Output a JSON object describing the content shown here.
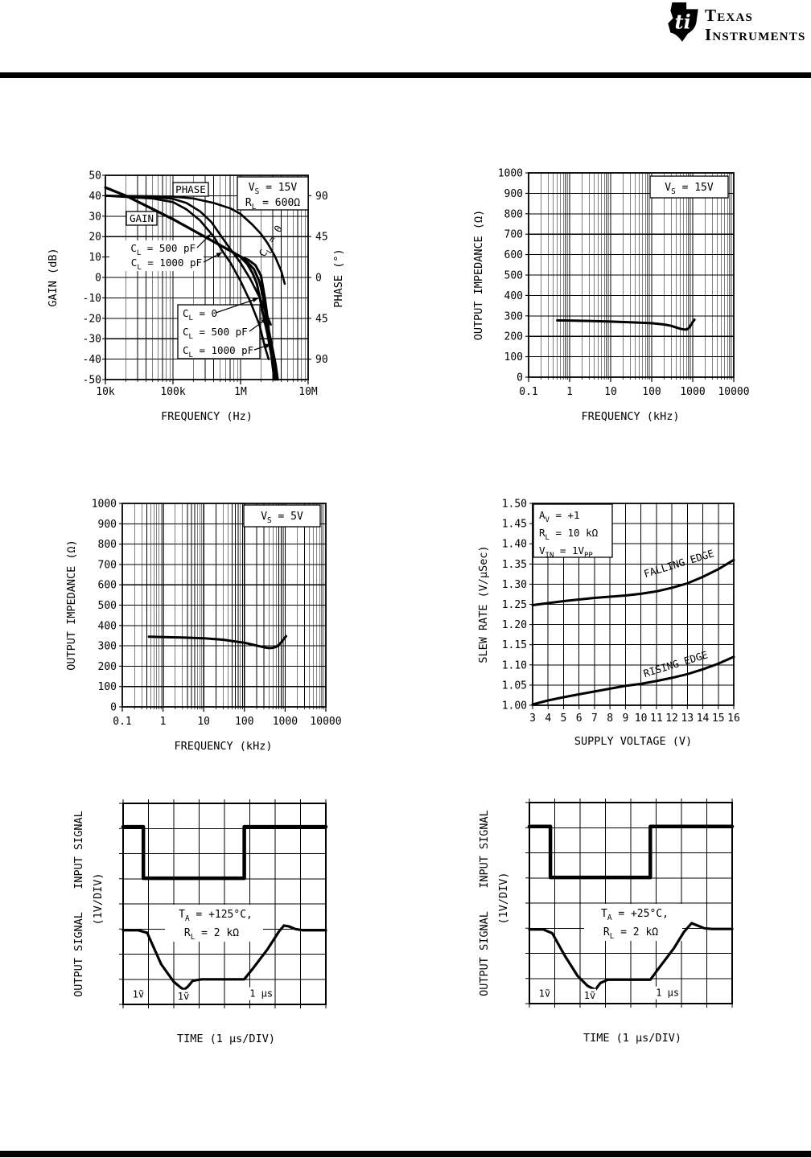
{
  "header": {
    "logo_mark_text": "ti",
    "brand_line1": "Texas",
    "brand_line2": "Instruments"
  },
  "chart_data": [
    {
      "id": "gain-phase-vs-frequency",
      "type": "line",
      "xscale": "log",
      "xlabel": "FREQUENCY (Hz)",
      "ylabel": "GAIN (dB)",
      "y2label": "PHASE (°)",
      "xlim": [
        10000,
        10000000
      ],
      "ylim": [
        -50,
        50
      ],
      "yticks": [
        "50",
        "40",
        "30",
        "20",
        "10",
        "0",
        "-10",
        "-20",
        "-30",
        "-40",
        "-50"
      ],
      "xticks": [
        {
          "exp": 4,
          "label": "10k"
        },
        {
          "exp": 5,
          "label": "100k"
        },
        {
          "exp": 6,
          "label": "1M"
        },
        {
          "exp": 7,
          "label": "10M"
        }
      ],
      "y2ticks": [
        {
          "at_db": 40,
          "label": "90"
        },
        {
          "at_db": 20,
          "label": "45"
        },
        {
          "at_db": 0,
          "label": "0"
        },
        {
          "at_db": -20,
          "label": "45"
        },
        {
          "at_db": -40,
          "label": "90"
        }
      ],
      "conditions": [
        "V~S~ = 15V",
        "R~L~ = 600Ω"
      ],
      "curve_labels": {
        "phase": "PHASE",
        "gain": "GAIN",
        "upper": [
          "C~L~ = 500 pF",
          "C~L~ = 1000 pF"
        ],
        "diagonal": "C~L~ = 0",
        "lower": [
          "C~L~ = 0",
          "C~L~ = 500 pF",
          "C~L~ = 1000 pF"
        ]
      },
      "series": [
        {
          "name": "GAIN CL = 0",
          "axis": "y1",
          "lw": 3,
          "points": [
            [
              10000,
              44
            ],
            [
              20000,
              40
            ],
            [
              50000,
              33.5
            ],
            [
              100000,
              28.5
            ],
            [
              200000,
              23
            ],
            [
              400000,
              17.5
            ],
            [
              710000,
              13
            ],
            [
              1000000,
              10
            ],
            [
              1260000,
              6.5
            ],
            [
              1510000,
              2
            ],
            [
              1740000,
              -3
            ],
            [
              1950000,
              -11
            ],
            [
              2190000,
              -19
            ],
            [
              2510000,
              -28
            ],
            [
              2820000,
              -37
            ],
            [
              3090000,
              -44
            ],
            [
              3310000,
              -50
            ]
          ]
        },
        {
          "name": "GAIN CL = 500 pF",
          "axis": "y1",
          "lw": 3,
          "points": [
            [
              10000,
              44
            ],
            [
              20000,
              40
            ],
            [
              50000,
              33.5
            ],
            [
              100000,
              28.5
            ],
            [
              200000,
              23
            ],
            [
              400000,
              17.5
            ],
            [
              710000,
              13
            ],
            [
              1000000,
              10
            ],
            [
              1260000,
              7.5
            ],
            [
              1580000,
              4
            ],
            [
              1900000,
              -2
            ],
            [
              2140000,
              -9
            ],
            [
              2400000,
              -20
            ],
            [
              2690000,
              -28
            ],
            [
              3020000,
              -36
            ],
            [
              3310000,
              -43
            ],
            [
              3550000,
              -50
            ]
          ]
        },
        {
          "name": "GAIN CL = 1000 pF",
          "axis": "y1",
          "lw": 3,
          "points": [
            [
              10000,
              44
            ],
            [
              20000,
              40
            ],
            [
              50000,
              33.5
            ],
            [
              100000,
              28.5
            ],
            [
              200000,
              23
            ],
            [
              400000,
              17.5
            ],
            [
              710000,
              13
            ],
            [
              1000000,
              10.2
            ],
            [
              1320000,
              8.5
            ],
            [
              1660000,
              6
            ],
            [
              2000000,
              1
            ],
            [
              2290000,
              -10
            ],
            [
              2510000,
              -20
            ],
            [
              2750000,
              -33
            ],
            [
              2950000,
              -42
            ],
            [
              3160000,
              -50
            ]
          ]
        },
        {
          "name": "PHASE CL = 0",
          "axis": "y2",
          "lw": 2.6,
          "points": [
            [
              10000,
              90
            ],
            [
              50000,
              89.5
            ],
            [
              100000,
              89
            ],
            [
              200000,
              87
            ],
            [
              400000,
              82
            ],
            [
              710000,
              76
            ],
            [
              1000000,
              70
            ],
            [
              1500000,
              58
            ],
            [
              2000000,
              48
            ],
            [
              2500000,
              38
            ],
            [
              3200000,
              24
            ],
            [
              4000000,
              7
            ],
            [
              4500000,
              -7
            ]
          ]
        },
        {
          "name": "PHASE CL = 500 pF",
          "axis": "y2",
          "lw": 2.6,
          "points": [
            [
              10000,
              90
            ],
            [
              50000,
              88.6
            ],
            [
              100000,
              86.6
            ],
            [
              158000,
              82
            ],
            [
              250000,
              73
            ],
            [
              370000,
              61
            ],
            [
              500000,
              47
            ],
            [
              710000,
              31
            ],
            [
              1000000,
              16
            ],
            [
              1400000,
              -2
            ],
            [
              2000000,
              -25
            ],
            [
              2500000,
              -43
            ],
            [
              2800000,
              -52
            ]
          ]
        },
        {
          "name": "PHASE CL = 1000 pF",
          "axis": "y2",
          "lw": 2.6,
          "points": [
            [
              10000,
              90
            ],
            [
              50000,
              87
            ],
            [
              100000,
              83
            ],
            [
              158000,
              75
            ],
            [
              250000,
              63
            ],
            [
              400000,
              45
            ],
            [
              550000,
              28
            ],
            [
              710000,
              16
            ],
            [
              1000000,
              -4
            ],
            [
              1400000,
              -27
            ],
            [
              1900000,
              -52
            ],
            [
              2300000,
              -77
            ],
            [
              2600000,
              -90
            ]
          ]
        }
      ]
    },
    {
      "id": "output-impedance-vs-frequency-15v",
      "type": "line",
      "xscale": "log",
      "xlabel": "FREQUENCY (kHz)",
      "ylabel": "OUTPUT IMPEDANCE (Ω)",
      "xlim": [
        0.1,
        10000
      ],
      "ylim": [
        0,
        1000
      ],
      "yticks": [
        "1000",
        "900",
        "800",
        "700",
        "600",
        "500",
        "400",
        "300",
        "200",
        "100",
        "0"
      ],
      "xticks": [
        {
          "exp": -1,
          "label": "0.1"
        },
        {
          "exp": 0,
          "label": "1"
        },
        {
          "exp": 1,
          "label": "10"
        },
        {
          "exp": 2,
          "label": "100"
        },
        {
          "exp": 3,
          "label": "1000"
        },
        {
          "exp": 4,
          "label": "10000"
        }
      ],
      "conditions": [
        "V~S~ = 15V"
      ],
      "series": [
        {
          "name": "Output impedance",
          "lw": 3,
          "points": [
            [
              0.5,
              278
            ],
            [
              1,
              277
            ],
            [
              3,
              275
            ],
            [
              10,
              272
            ],
            [
              30,
              269
            ],
            [
              100,
              264
            ],
            [
              200,
              258
            ],
            [
              300,
              251
            ],
            [
              400,
              243
            ],
            [
              500,
              237
            ],
            [
              630,
              233
            ],
            [
              710,
              233
            ],
            [
              800,
              240
            ],
            [
              900,
              255
            ],
            [
              1000,
              270
            ],
            [
              1100,
              281
            ]
          ]
        }
      ]
    },
    {
      "id": "output-impedance-vs-frequency-5v",
      "type": "line",
      "xscale": "log",
      "xlabel": "FREQUENCY (kHz)",
      "ylabel": "OUTPUT IMPEDANCE (Ω)",
      "xlim": [
        0.1,
        10000
      ],
      "ylim": [
        0,
        1000
      ],
      "yticks": [
        "1000",
        "900",
        "800",
        "700",
        "600",
        "500",
        "400",
        "300",
        "200",
        "100",
        "0"
      ],
      "xticks": [
        {
          "exp": -1,
          "label": "0.1"
        },
        {
          "exp": 0,
          "label": "1"
        },
        {
          "exp": 1,
          "label": "10"
        },
        {
          "exp": 2,
          "label": "100"
        },
        {
          "exp": 3,
          "label": "1000"
        },
        {
          "exp": 4,
          "label": "10000"
        }
      ],
      "conditions": [
        "V~S~ = 5V"
      ],
      "series": [
        {
          "name": "Output impedance",
          "lw": 3,
          "points": [
            [
              0.45,
              345
            ],
            [
              1,
              343
            ],
            [
              3,
              341
            ],
            [
              10,
              337
            ],
            [
              30,
              330
            ],
            [
              100,
              315
            ],
            [
              160,
              306
            ],
            [
              250,
              297
            ],
            [
              320,
              292
            ],
            [
              400,
              289
            ],
            [
              500,
              290
            ],
            [
              630,
              297
            ],
            [
              800,
              317
            ],
            [
              900,
              330
            ],
            [
              1050,
              347
            ]
          ]
        }
      ]
    },
    {
      "id": "slew-rate-vs-supply-voltage",
      "type": "line",
      "xscale": "linear",
      "xlabel": "SUPPLY VOLTAGE (V)",
      "ylabel": "SLEW RATE (V/μSec)",
      "xlim": [
        3,
        16
      ],
      "ylim": [
        1.0,
        1.5
      ],
      "yticks": [
        "1.50",
        "1.45",
        "1.40",
        "1.35",
        "1.30",
        "1.25",
        "1.20",
        "1.15",
        "1.10",
        "1.05",
        "1.00"
      ],
      "xticks": [
        "3",
        "4",
        "5",
        "6",
        "7",
        "8",
        "9",
        "10",
        "11",
        "12",
        "13",
        "14",
        "15",
        "16"
      ],
      "conditions": [
        "A~V~ = +1",
        "R~L~ = 10 kΩ",
        "V~IN~ = 1V~PP~"
      ],
      "series": [
        {
          "name": "FALLING EDGE",
          "lw": 3,
          "points": [
            [
              3,
              1.248
            ],
            [
              4,
              1.253
            ],
            [
              5,
              1.258
            ],
            [
              6,
              1.262
            ],
            [
              7,
              1.266
            ],
            [
              8,
              1.269
            ],
            [
              9,
              1.272
            ],
            [
              10,
              1.276
            ],
            [
              11,
              1.282
            ],
            [
              12,
              1.291
            ],
            [
              13,
              1.302
            ],
            [
              14,
              1.318
            ],
            [
              15,
              1.337
            ],
            [
              16,
              1.36
            ]
          ]
        },
        {
          "name": "RISING EDGE",
          "lw": 3,
          "points": [
            [
              3,
              1.002
            ],
            [
              4,
              1.012
            ],
            [
              5,
              1.02
            ],
            [
              6,
              1.027
            ],
            [
              7,
              1.034
            ],
            [
              8,
              1.041
            ],
            [
              9,
              1.048
            ],
            [
              10,
              1.053
            ],
            [
              11,
              1.06
            ],
            [
              12,
              1.068
            ],
            [
              13,
              1.077
            ],
            [
              14,
              1.089
            ],
            [
              15,
              1.103
            ],
            [
              16,
              1.12
            ]
          ]
        }
      ],
      "curve_labels": [
        "FALLING EDGE",
        "RISING EDGE"
      ]
    },
    {
      "id": "pulse-response-125c",
      "type": "oscilloscope",
      "xlabel": "TIME (1 μs/DIV)",
      "ylabels": {
        "input": "INPUT SIGNAL",
        "output": "OUTPUT SIGNAL",
        "scale": "(1V/DIV)"
      },
      "conditions": [
        "T~A~ = +125°C,",
        "R~L~ = 2 kΩ"
      ],
      "markers": [
        "1ṽ",
        "1ṽ",
        "1 μs"
      ],
      "grid_divs": 8,
      "input_trace": [
        [
          0,
          0.93
        ],
        [
          0.8,
          0.93
        ],
        [
          0.8,
          2.98
        ],
        [
          4.78,
          2.98
        ],
        [
          4.78,
          0.93
        ],
        [
          8,
          0.93
        ]
      ],
      "output_trace": [
        [
          0,
          5.05
        ],
        [
          0.6,
          5.05
        ],
        [
          0.95,
          5.15
        ],
        [
          1.5,
          6.4
        ],
        [
          2.0,
          7.1
        ],
        [
          2.3,
          7.35
        ],
        [
          2.42,
          7.4
        ],
        [
          2.55,
          7.3
        ],
        [
          2.75,
          7.06
        ],
        [
          3.1,
          7.0
        ],
        [
          4.3,
          7.0
        ],
        [
          4.78,
          7.0
        ],
        [
          5.1,
          6.6
        ],
        [
          5.7,
          5.8
        ],
        [
          6.15,
          5.1
        ],
        [
          6.35,
          4.86
        ],
        [
          6.55,
          4.9
        ],
        [
          6.8,
          5.0
        ],
        [
          7.1,
          5.05
        ],
        [
          8,
          5.05
        ]
      ]
    },
    {
      "id": "pulse-response-25c",
      "type": "oscilloscope",
      "xlabel": "TIME (1 μs/DIV)",
      "ylabels": {
        "input": "INPUT SIGNAL",
        "output": "OUTPUT SIGNAL",
        "scale": "(1V/DIV)"
      },
      "conditions": [
        "T~A~ = +25°C,",
        "R~L~ = 2 kΩ"
      ],
      "markers": [
        "1ṽ",
        "1ṽ",
        "1 μs"
      ],
      "grid_divs": 8,
      "input_trace": [
        [
          0,
          0.95
        ],
        [
          0.83,
          0.95
        ],
        [
          0.83,
          2.98
        ],
        [
          4.77,
          2.98
        ],
        [
          4.77,
          0.95
        ],
        [
          8,
          0.95
        ]
      ],
      "output_trace": [
        [
          0,
          5.05
        ],
        [
          0.55,
          5.05
        ],
        [
          0.9,
          5.2
        ],
        [
          1.4,
          6.1
        ],
        [
          1.9,
          6.9
        ],
        [
          2.3,
          7.3
        ],
        [
          2.6,
          7.45
        ],
        [
          2.8,
          7.18
        ],
        [
          3.1,
          7.05
        ],
        [
          4.3,
          7.05
        ],
        [
          4.77,
          7.05
        ],
        [
          5.1,
          6.6
        ],
        [
          5.7,
          5.8
        ],
        [
          6.1,
          5.15
        ],
        [
          6.4,
          4.8
        ],
        [
          6.6,
          4.88
        ],
        [
          6.9,
          5.0
        ],
        [
          7.2,
          5.03
        ],
        [
          8,
          5.03
        ]
      ]
    }
  ]
}
